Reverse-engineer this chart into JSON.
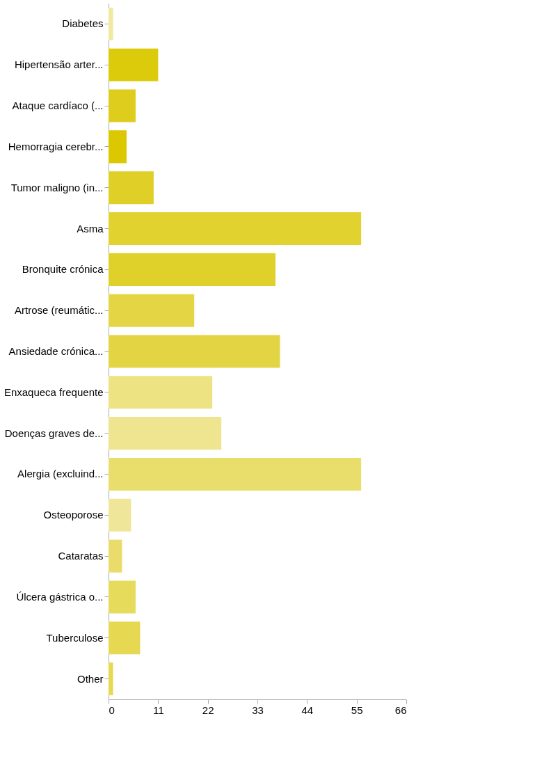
{
  "chart_data": {
    "type": "bar",
    "orientation": "horizontal",
    "categories": [
      "Diabetes",
      "Hipertensão arter...",
      "Ataque cardíaco (...",
      "Hemorragia cerebr...",
      "Tumor maligno (in...",
      "Asma",
      "Bronquite crónica",
      "Artrose (reumátic...",
      "Ansiedade crónica...",
      "Enxaqueca frequente",
      "Doenças graves de...",
      "Alergia (excluind...",
      "Osteoporose",
      "Cataratas",
      "Úlcera gástrica o...",
      "Tuberculose",
      "Other"
    ],
    "values": [
      1,
      11,
      6,
      4,
      10,
      56,
      37,
      19,
      38,
      23,
      25,
      56,
      5,
      3,
      6,
      7,
      1
    ],
    "colors": [
      "#f2e9a0",
      "#dccb0a",
      "#dfcd1e",
      "#dcc800",
      "#e0cf26",
      "#e2d230",
      "#e0d02a",
      "#e4d545",
      "#e3d443",
      "#eee383",
      "#efe591",
      "#e9dd6c",
      "#efe69a",
      "#e9dc6a",
      "#e7db5c",
      "#e6d850",
      "#e6d850"
    ],
    "xlim": [
      0,
      66
    ],
    "xticks": [
      0,
      11,
      22,
      33,
      44,
      55,
      66
    ],
    "grid": false
  }
}
